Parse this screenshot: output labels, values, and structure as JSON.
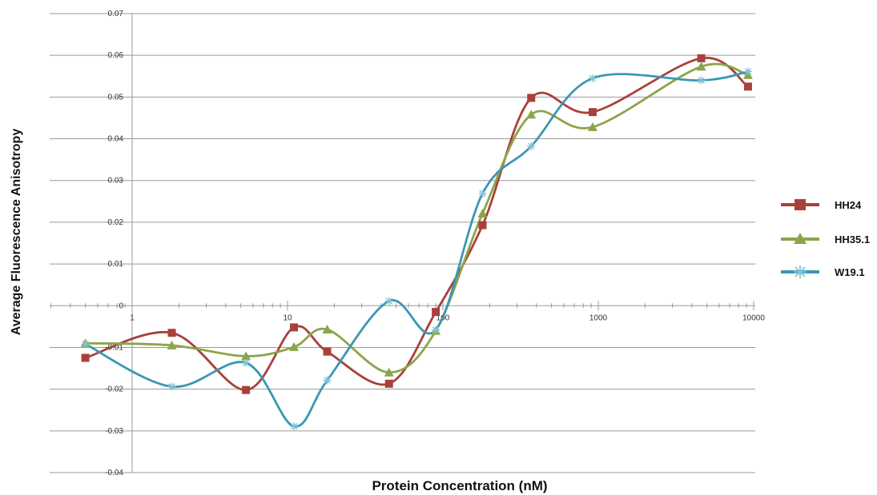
{
  "chart_data": {
    "type": "line",
    "x_scale": "log",
    "xlabel": "Protein Concentration (nM)",
    "ylabel": "Average  Fluorescence Anisotropy",
    "ylim": [
      -0.04,
      0.07
    ],
    "xlim": [
      0.5,
      10000
    ],
    "grid": "horizontal",
    "legend_position": "right",
    "x_ticks": [
      {
        "value": 1,
        "label": "1"
      },
      {
        "value": 10,
        "label": "10"
      },
      {
        "value": 100,
        "label": "100"
      },
      {
        "value": 1000,
        "label": "1000"
      },
      {
        "value": 10000,
        "label": "10000"
      }
    ],
    "y_ticks": [
      {
        "value": 0.07,
        "label": "0.07"
      },
      {
        "value": 0.06,
        "label": "0.06"
      },
      {
        "value": 0.05,
        "label": "0.05"
      },
      {
        "value": 0.04,
        "label": "0.04"
      },
      {
        "value": 0.03,
        "label": "0.03"
      },
      {
        "value": 0.02,
        "label": "0.02"
      },
      {
        "value": 0.01,
        "label": "0.01"
      },
      {
        "value": 0,
        "label": "0"
      },
      {
        "value": -0.01,
        "label": "-0.01"
      },
      {
        "value": -0.02,
        "label": "-0.02"
      },
      {
        "value": -0.03,
        "label": "-0.03"
      },
      {
        "value": -0.04,
        "label": "-0.04"
      }
    ],
    "series": [
      {
        "name": "HH24",
        "color": "#a9403b",
        "marker": "square",
        "points": [
          {
            "x": 0.5,
            "y": -0.0125
          },
          {
            "x": 1.8,
            "y": -0.0065
          },
          {
            "x": 5.4,
            "y": -0.0202
          },
          {
            "x": 11,
            "y": -0.0052
          },
          {
            "x": 18,
            "y": -0.011
          },
          {
            "x": 45,
            "y": -0.0187
          },
          {
            "x": 90,
            "y": -0.0015
          },
          {
            "x": 180,
            "y": 0.0193
          },
          {
            "x": 370,
            "y": 0.0498
          },
          {
            "x": 920,
            "y": 0.0464
          },
          {
            "x": 4600,
            "y": 0.0593
          },
          {
            "x": 9200,
            "y": 0.0525
          }
        ]
      },
      {
        "name": "HH35.1",
        "color": "#8ba54a",
        "marker": "triangle",
        "points": [
          {
            "x": 0.5,
            "y": -0.009
          },
          {
            "x": 1.8,
            "y": -0.0095
          },
          {
            "x": 5.4,
            "y": -0.0121
          },
          {
            "x": 11,
            "y": -0.0099
          },
          {
            "x": 18,
            "y": -0.0057
          },
          {
            "x": 45,
            "y": -0.016
          },
          {
            "x": 90,
            "y": -0.006
          },
          {
            "x": 180,
            "y": 0.0221
          },
          {
            "x": 370,
            "y": 0.0458
          },
          {
            "x": 920,
            "y": 0.0428
          },
          {
            "x": 4600,
            "y": 0.0573
          },
          {
            "x": 9200,
            "y": 0.0553
          }
        ]
      },
      {
        "name": "W19.1",
        "color": "#3b97b3",
        "marker": "star",
        "points": [
          {
            "x": 0.5,
            "y": -0.0092
          },
          {
            "x": 1.8,
            "y": -0.0194
          },
          {
            "x": 5.4,
            "y": -0.0137
          },
          {
            "x": 11,
            "y": -0.0289
          },
          {
            "x": 18,
            "y": -0.0179
          },
          {
            "x": 45,
            "y": 0.0011
          },
          {
            "x": 90,
            "y": -0.0058
          },
          {
            "x": 180,
            "y": 0.0269
          },
          {
            "x": 370,
            "y": 0.0382
          },
          {
            "x": 920,
            "y": 0.0545
          },
          {
            "x": 4600,
            "y": 0.054
          },
          {
            "x": 9200,
            "y": 0.0561
          }
        ]
      }
    ]
  }
}
